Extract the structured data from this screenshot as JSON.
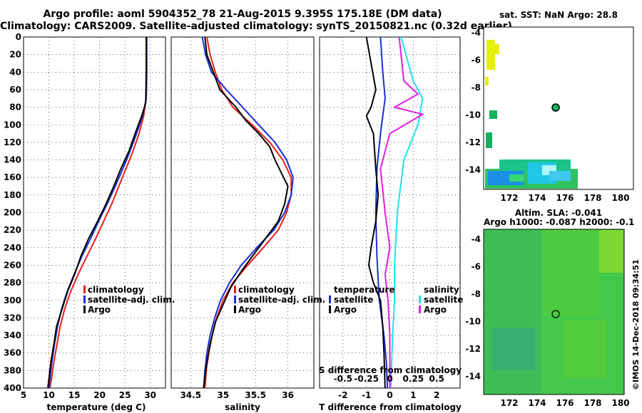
{
  "title_line1": "Argo profile: aoml 5904352_78 21-Aug-2015 9.395S 175.18E (DM data)",
  "title_line2": "Climatology: CARS2009. Satellite-adjusted climatology: synTS_20150821.nc (0.32d earlier)",
  "colors": {
    "climatology": "#e8211d",
    "satellite": "#1a2fd6",
    "argo": "#000000",
    "sat_salinity": "#22e0e8",
    "sat_adj_salinity": "#e020e0"
  },
  "chart_data": [
    {
      "type": "line",
      "xlabel": "temperature (deg C)",
      "ylabel": "",
      "xlim": [
        5,
        33
      ],
      "ylim": [
        400,
        0
      ],
      "xticks": [
        5,
        10,
        15,
        20,
        25,
        30
      ],
      "yticks": [
        0,
        20,
        40,
        60,
        80,
        100,
        120,
        140,
        160,
        180,
        200,
        220,
        240,
        260,
        280,
        300,
        320,
        340,
        360,
        380,
        400
      ],
      "legend": [
        "climatology",
        "satellite-adj. clim.",
        "Argo"
      ],
      "series": [
        {
          "name": "climatology",
          "color": "#e8211d",
          "points": [
            [
              29.3,
              0
            ],
            [
              29.3,
              40
            ],
            [
              29.2,
              70
            ],
            [
              28.7,
              90
            ],
            [
              27.8,
              110
            ],
            [
              26.6,
              130
            ],
            [
              25.2,
              150
            ],
            [
              23.8,
              170
            ],
            [
              22.4,
              190
            ],
            [
              20.8,
              210
            ],
            [
              19.2,
              230
            ],
            [
              17.5,
              250
            ],
            [
              15.8,
              270
            ],
            [
              14.3,
              290
            ],
            [
              13.1,
              310
            ],
            [
              12.2,
              330
            ],
            [
              11.6,
              350
            ],
            [
              11.0,
              370
            ],
            [
              10.5,
              390
            ],
            [
              10.2,
              400
            ]
          ]
        },
        {
          "name": "satellite-adj. clim.",
          "color": "#1a2fd6",
          "points": [
            [
              29.3,
              0
            ],
            [
              29.3,
              40
            ],
            [
              29.2,
              70
            ],
            [
              28.5,
              90
            ],
            [
              27.3,
              110
            ],
            [
              26.0,
              130
            ],
            [
              24.6,
              150
            ],
            [
              23.1,
              170
            ],
            [
              21.5,
              190
            ],
            [
              19.8,
              210
            ],
            [
              18.2,
              230
            ],
            [
              16.5,
              250
            ],
            [
              15.0,
              270
            ],
            [
              13.6,
              290
            ],
            [
              12.5,
              310
            ],
            [
              11.7,
              330
            ],
            [
              11.1,
              350
            ],
            [
              10.6,
              370
            ],
            [
              10.2,
              390
            ],
            [
              10.0,
              400
            ]
          ]
        },
        {
          "name": "Argo",
          "color": "#000000",
          "points": [
            [
              29.2,
              0
            ],
            [
              29.2,
              40
            ],
            [
              29.1,
              75
            ],
            [
              28.3,
              90
            ],
            [
              27.0,
              110
            ],
            [
              25.8,
              130
            ],
            [
              24.2,
              150
            ],
            [
              22.8,
              170
            ],
            [
              21.3,
              190
            ],
            [
              19.6,
              210
            ],
            [
              17.8,
              230
            ],
            [
              16.3,
              250
            ],
            [
              15.1,
              270
            ],
            [
              13.7,
              290
            ],
            [
              12.6,
              310
            ],
            [
              11.5,
              330
            ],
            [
              11.0,
              350
            ],
            [
              10.4,
              370
            ],
            [
              10.0,
              390
            ],
            [
              9.8,
              400
            ]
          ]
        }
      ]
    },
    {
      "type": "line",
      "xlabel": "salinity",
      "ylabel": "",
      "xlim": [
        34.2,
        36.4
      ],
      "ylim": [
        400,
        0
      ],
      "xticks": [
        34.5,
        35,
        35.5,
        36
      ],
      "xticklabels": [
        "34.5",
        "35",
        "35.5",
        "36"
      ],
      "legend": [
        "climatology",
        "satellite-adj. clim.",
        "Argo"
      ],
      "series": [
        {
          "name": "climatology",
          "color": "#e8211d",
          "points": [
            [
              34.75,
              0
            ],
            [
              34.8,
              20
            ],
            [
              34.88,
              40
            ],
            [
              34.98,
              60
            ],
            [
              35.15,
              80
            ],
            [
              35.45,
              100
            ],
            [
              35.72,
              120
            ],
            [
              35.92,
              140
            ],
            [
              36.05,
              160
            ],
            [
              36.05,
              180
            ],
            [
              35.98,
              200
            ],
            [
              35.85,
              220
            ],
            [
              35.62,
              240
            ],
            [
              35.38,
              260
            ],
            [
              35.15,
              280
            ],
            [
              35.0,
              300
            ],
            [
              34.9,
              320
            ],
            [
              34.83,
              340
            ],
            [
              34.78,
              360
            ],
            [
              34.74,
              380
            ],
            [
              34.72,
              400
            ]
          ]
        },
        {
          "name": "satellite-adj. clim.",
          "color": "#1a2fd6",
          "points": [
            [
              34.68,
              0
            ],
            [
              34.73,
              20
            ],
            [
              34.82,
              40
            ],
            [
              35.05,
              60
            ],
            [
              35.3,
              80
            ],
            [
              35.55,
              100
            ],
            [
              35.8,
              120
            ],
            [
              35.98,
              140
            ],
            [
              36.08,
              160
            ],
            [
              36.05,
              180
            ],
            [
              35.95,
              200
            ],
            [
              35.78,
              220
            ],
            [
              35.52,
              240
            ],
            [
              35.28,
              260
            ],
            [
              35.1,
              280
            ],
            [
              34.96,
              300
            ],
            [
              34.87,
              320
            ],
            [
              34.8,
              340
            ],
            [
              34.75,
              360
            ],
            [
              34.72,
              380
            ],
            [
              34.7,
              400
            ]
          ]
        },
        {
          "name": "Argo",
          "color": "#000000",
          "points": [
            [
              34.72,
              0
            ],
            [
              34.75,
              20
            ],
            [
              34.85,
              40
            ],
            [
              34.95,
              60
            ],
            [
              35.2,
              80
            ],
            [
              35.35,
              95
            ],
            [
              35.55,
              110
            ],
            [
              35.72,
              125
            ],
            [
              35.8,
              140
            ],
            [
              35.9,
              155
            ],
            [
              36.0,
              170
            ],
            [
              35.95,
              190
            ],
            [
              35.85,
              210
            ],
            [
              35.65,
              230
            ],
            [
              35.45,
              250
            ],
            [
              35.3,
              265
            ],
            [
              35.12,
              285
            ],
            [
              35.0,
              305
            ],
            [
              34.88,
              325
            ],
            [
              34.8,
              350
            ],
            [
              34.74,
              375
            ],
            [
              34.7,
              400
            ]
          ]
        }
      ]
    },
    {
      "type": "line",
      "xlabel": "T difference from climatology",
      "top_label": "S difference from climatology",
      "xlim": [
        -3,
        3
      ],
      "s_xlim": [
        -0.75,
        0.75
      ],
      "ylim": [
        400,
        0
      ],
      "xticks": [
        -2,
        -1,
        0,
        1,
        2
      ],
      "s_xticks": [
        -0.5,
        -0.25,
        0,
        0.25,
        0.5
      ],
      "s_xticklabels": [
        "-0.5",
        "-0.25",
        "0",
        "0.25",
        "0.5"
      ],
      "legend_temperature": {
        "title": "temperature",
        "items": [
          "satellite",
          "Argo"
        ]
      },
      "legend_salinity": {
        "title": "salinity",
        "items": [
          "satellite",
          "Argo"
        ]
      },
      "series": [
        {
          "name": "temperature satellite",
          "color": "#1a2fd6",
          "points": [
            [
              -0.4,
              0
            ],
            [
              -0.3,
              40
            ],
            [
              -0.2,
              70
            ],
            [
              -0.3,
              90
            ],
            [
              -0.4,
              110
            ],
            [
              -0.55,
              150
            ],
            [
              -0.6,
              200
            ],
            [
              -0.55,
              250
            ],
            [
              -0.45,
              300
            ],
            [
              -0.25,
              340
            ],
            [
              -0.15,
              370
            ],
            [
              -0.1,
              400
            ]
          ]
        },
        {
          "name": "temperature Argo",
          "color": "#000000",
          "points": [
            [
              -1.0,
              0
            ],
            [
              -0.8,
              30
            ],
            [
              -0.6,
              60
            ],
            [
              -0.8,
              80
            ],
            [
              -1.0,
              90
            ],
            [
              -0.7,
              110
            ],
            [
              -0.6,
              150
            ],
            [
              -0.5,
              180
            ],
            [
              -0.6,
              210
            ],
            [
              -0.8,
              240
            ],
            [
              -0.9,
              260
            ],
            [
              -0.7,
              280
            ],
            [
              -0.4,
              300
            ],
            [
              -0.3,
              330
            ],
            [
              -0.25,
              360
            ],
            [
              -0.2,
              400
            ]
          ]
        },
        {
          "name": "salinity satellite",
          "color": "#22e0e8",
          "points": [
            [
              0.12,
              0
            ],
            [
              0.25,
              50
            ],
            [
              0.35,
              70
            ],
            [
              0.3,
              100
            ],
            [
              0.15,
              140
            ],
            [
              0.08,
              200
            ],
            [
              0.05,
              260
            ],
            [
              0.05,
              300
            ],
            [
              0.03,
              340
            ],
            [
              0.01,
              400
            ]
          ]
        },
        {
          "name": "salinity Argo",
          "color": "#e020e0",
          "points": [
            [
              0.1,
              0
            ],
            [
              0.15,
              50
            ],
            [
              0.3,
              65
            ],
            [
              0.05,
              80
            ],
            [
              0.35,
              88
            ],
            [
              0.0,
              110
            ],
            [
              -0.1,
              150
            ],
            [
              -0.05,
              200
            ],
            [
              0.0,
              240
            ],
            [
              -0.05,
              270
            ],
            [
              -0.02,
              300
            ],
            [
              0.0,
              340
            ],
            [
              0.0,
              400
            ]
          ]
        }
      ]
    }
  ],
  "maps": {
    "sst": {
      "title": "sat. SST: NaN Argo: 28.8",
      "yticks": [
        "-4",
        "-6",
        "-8",
        "-10",
        "-12",
        "-14"
      ],
      "xticks": [
        "172",
        "174",
        "176",
        "178",
        "180"
      ]
    },
    "sla": {
      "title_line1": "Altim. SLA: -0.041",
      "title_line2": "Argo h1000: -0.087 h2000: -0.1",
      "yticks": [
        "-4",
        "-6",
        "-8",
        "-10",
        "-12",
        "-14"
      ],
      "xticks": [
        "172",
        "174",
        "176",
        "178",
        "180"
      ]
    }
  },
  "credit": "©IMOS 14-Dec-2018 09:34:51"
}
